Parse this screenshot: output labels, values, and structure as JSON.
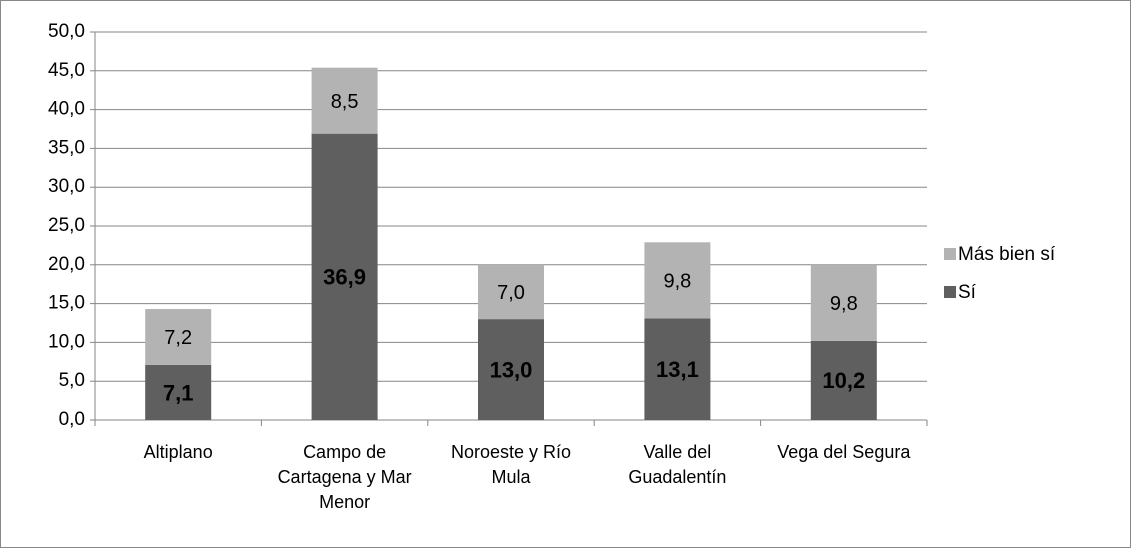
{
  "chart_data": {
    "type": "stacked_bar",
    "categories": [
      "Altiplano",
      "Campo de Cartagena y Mar Menor",
      "Noroeste y Río Mula",
      "Valle del Guadalentín",
      "Vega del Segura"
    ],
    "series": [
      {
        "name": "Sí",
        "color": "#5f5f5f",
        "values": [
          7.1,
          36.9,
          13.0,
          13.1,
          10.2
        ],
        "value_labels": [
          "7,1",
          "36,9",
          "13,0",
          "13,1",
          "10,2"
        ]
      },
      {
        "name": "Más bien sí",
        "color": "#b3b3b3",
        "values": [
          7.2,
          8.5,
          7.0,
          9.8,
          9.8
        ],
        "value_labels": [
          "7,2",
          "8,5",
          "7,0",
          "9,8",
          "9,8"
        ]
      }
    ],
    "ylim": [
      0,
      50
    ],
    "yticks": [
      {
        "value": 0,
        "label": "0,0"
      },
      {
        "value": 5,
        "label": "5,0"
      },
      {
        "value": 10,
        "label": "10,0"
      },
      {
        "value": 15,
        "label": "15,0"
      },
      {
        "value": 20,
        "label": "20,0"
      },
      {
        "value": 25,
        "label": "25,0"
      },
      {
        "value": 30,
        "label": "30,0"
      },
      {
        "value": 35,
        "label": "35,0"
      },
      {
        "value": 40,
        "label": "40,0"
      },
      {
        "value": 45,
        "label": "45,0"
      },
      {
        "value": 50,
        "label": "50,0"
      }
    ],
    "grid": true,
    "legend": "right"
  }
}
